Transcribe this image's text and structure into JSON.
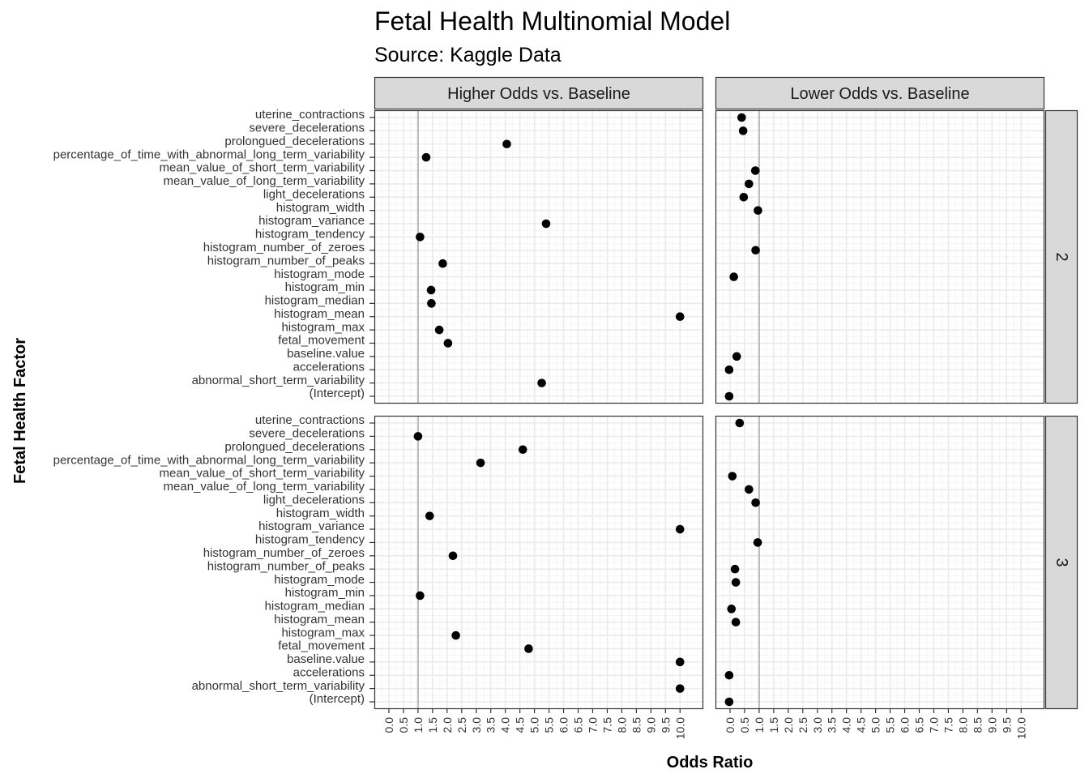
{
  "title": "Fetal Health Multinomial Model",
  "subtitle": "Source: Kaggle Data",
  "chart_data": {
    "type": "scatter",
    "title": "Fetal Health Multinomial Model",
    "subtitle": "Source: Kaggle Data",
    "xlabel": "Odds Ratio",
    "ylabel": "Fetal Health Factor",
    "xlim": [
      -0.5,
      10.8
    ],
    "x_ticks": [
      "0.0",
      "0.5",
      "1.0",
      "1.5",
      "2.0",
      "2.5",
      "3.0",
      "3.5",
      "4.0",
      "4.5",
      "5.0",
      "5.5",
      "6.0",
      "6.5",
      "7.0",
      "7.5",
      "8.0",
      "8.5",
      "9.0",
      "9.5",
      "10.0"
    ],
    "reference_line_x": 1,
    "grid": true,
    "col_facets": [
      "Higher Odds vs. Baseline",
      "Lower Odds vs. Baseline"
    ],
    "row_facets": [
      "2",
      "3"
    ],
    "categories": [
      "uterine_contractions",
      "severe_decelerations",
      "prolongued_decelerations",
      "percentage_of_time_with_abnormal_long_term_variability",
      "mean_value_of_short_term_variability",
      "mean_value_of_long_term_variability",
      "light_decelerations",
      "histogram_width",
      "histogram_variance",
      "histogram_tendency",
      "histogram_number_of_zeroes",
      "histogram_number_of_peaks",
      "histogram_mode",
      "histogram_min",
      "histogram_median",
      "histogram_mean",
      "histogram_max",
      "fetal_movement",
      "baseline.value",
      "accelerations",
      "abnormal_short_term_variability",
      "(Intercept)"
    ],
    "points": [
      {
        "row": "2",
        "col": "Higher Odds vs. Baseline",
        "factor": "prolongued_decelerations",
        "x": 4.05
      },
      {
        "row": "2",
        "col": "Higher Odds vs. Baseline",
        "factor": "percentage_of_time_with_abnormal_long_term_variability",
        "x": 1.28
      },
      {
        "row": "2",
        "col": "Higher Odds vs. Baseline",
        "factor": "histogram_variance",
        "x": 5.4
      },
      {
        "row": "2",
        "col": "Higher Odds vs. Baseline",
        "factor": "histogram_tendency",
        "x": 1.07
      },
      {
        "row": "2",
        "col": "Higher Odds vs. Baseline",
        "factor": "histogram_number_of_peaks",
        "x": 1.85
      },
      {
        "row": "2",
        "col": "Higher Odds vs. Baseline",
        "factor": "histogram_min",
        "x": 1.45
      },
      {
        "row": "2",
        "col": "Higher Odds vs. Baseline",
        "factor": "histogram_median",
        "x": 1.46
      },
      {
        "row": "2",
        "col": "Higher Odds vs. Baseline",
        "factor": "histogram_mean",
        "x": 10.0
      },
      {
        "row": "2",
        "col": "Higher Odds vs. Baseline",
        "factor": "histogram_max",
        "x": 1.73
      },
      {
        "row": "2",
        "col": "Higher Odds vs. Baseline",
        "factor": "fetal_movement",
        "x": 2.03
      },
      {
        "row": "2",
        "col": "Higher Odds vs. Baseline",
        "factor": "abnormal_short_term_variability",
        "x": 5.25
      },
      {
        "row": "2",
        "col": "Lower Odds vs. Baseline",
        "factor": "uterine_contractions",
        "x": 0.4
      },
      {
        "row": "2",
        "col": "Lower Odds vs. Baseline",
        "factor": "severe_decelerations",
        "x": 0.45
      },
      {
        "row": "2",
        "col": "Lower Odds vs. Baseline",
        "factor": "mean_value_of_short_term_variability",
        "x": 0.87
      },
      {
        "row": "2",
        "col": "Lower Odds vs. Baseline",
        "factor": "mean_value_of_long_term_variability",
        "x": 0.65
      },
      {
        "row": "2",
        "col": "Lower Odds vs. Baseline",
        "factor": "light_decelerations",
        "x": 0.47
      },
      {
        "row": "2",
        "col": "Lower Odds vs. Baseline",
        "factor": "histogram_width",
        "x": 0.96
      },
      {
        "row": "2",
        "col": "Lower Odds vs. Baseline",
        "factor": "histogram_number_of_zeroes",
        "x": 0.88
      },
      {
        "row": "2",
        "col": "Lower Odds vs. Baseline",
        "factor": "histogram_mode",
        "x": 0.13
      },
      {
        "row": "2",
        "col": "Lower Odds vs. Baseline",
        "factor": "baseline.value",
        "x": 0.23
      },
      {
        "row": "2",
        "col": "Lower Odds vs. Baseline",
        "factor": "accelerations",
        "x": -0.03
      },
      {
        "row": "2",
        "col": "Lower Odds vs. Baseline",
        "factor": "(Intercept)",
        "x": -0.03
      },
      {
        "row": "3",
        "col": "Higher Odds vs. Baseline",
        "factor": "severe_decelerations",
        "x": 1.0
      },
      {
        "row": "3",
        "col": "Higher Odds vs. Baseline",
        "factor": "prolongued_decelerations",
        "x": 4.6
      },
      {
        "row": "3",
        "col": "Higher Odds vs. Baseline",
        "factor": "percentage_of_time_with_abnormal_long_term_variability",
        "x": 3.15
      },
      {
        "row": "3",
        "col": "Higher Odds vs. Baseline",
        "factor": "histogram_width",
        "x": 1.4
      },
      {
        "row": "3",
        "col": "Higher Odds vs. Baseline",
        "factor": "histogram_variance",
        "x": 10.0
      },
      {
        "row": "3",
        "col": "Higher Odds vs. Baseline",
        "factor": "histogram_number_of_zeroes",
        "x": 2.2
      },
      {
        "row": "3",
        "col": "Higher Odds vs. Baseline",
        "factor": "histogram_min",
        "x": 1.07
      },
      {
        "row": "3",
        "col": "Higher Odds vs. Baseline",
        "factor": "histogram_max",
        "x": 2.3
      },
      {
        "row": "3",
        "col": "Higher Odds vs. Baseline",
        "factor": "fetal_movement",
        "x": 4.8
      },
      {
        "row": "3",
        "col": "Higher Odds vs. Baseline",
        "factor": "baseline.value",
        "x": 10.0
      },
      {
        "row": "3",
        "col": "Higher Odds vs. Baseline",
        "factor": "abnormal_short_term_variability",
        "x": 10.0
      },
      {
        "row": "3",
        "col": "Lower Odds vs. Baseline",
        "factor": "uterine_contractions",
        "x": 0.33
      },
      {
        "row": "3",
        "col": "Lower Odds vs. Baseline",
        "factor": "mean_value_of_short_term_variability",
        "x": 0.08
      },
      {
        "row": "3",
        "col": "Lower Odds vs. Baseline",
        "factor": "mean_value_of_long_term_variability",
        "x": 0.65
      },
      {
        "row": "3",
        "col": "Lower Odds vs. Baseline",
        "factor": "light_decelerations",
        "x": 0.88
      },
      {
        "row": "3",
        "col": "Lower Odds vs. Baseline",
        "factor": "histogram_tendency",
        "x": 0.95
      },
      {
        "row": "3",
        "col": "Lower Odds vs. Baseline",
        "factor": "histogram_number_of_peaks",
        "x": 0.17
      },
      {
        "row": "3",
        "col": "Lower Odds vs. Baseline",
        "factor": "histogram_mode",
        "x": 0.2
      },
      {
        "row": "3",
        "col": "Lower Odds vs. Baseline",
        "factor": "histogram_median",
        "x": 0.05
      },
      {
        "row": "3",
        "col": "Lower Odds vs. Baseline",
        "factor": "histogram_mean",
        "x": 0.2
      },
      {
        "row": "3",
        "col": "Lower Odds vs. Baseline",
        "factor": "accelerations",
        "x": -0.03
      },
      {
        "row": "3",
        "col": "Lower Odds vs. Baseline",
        "factor": "(Intercept)",
        "x": -0.03
      }
    ],
    "colors": {
      "point": "#000000",
      "strip_fill": "#d9d9d9",
      "panel_border": "#333333",
      "grid_major": "#ebebeb",
      "grid_minor": "#f5f5f5",
      "reference_line": "#bdbdbd"
    }
  }
}
